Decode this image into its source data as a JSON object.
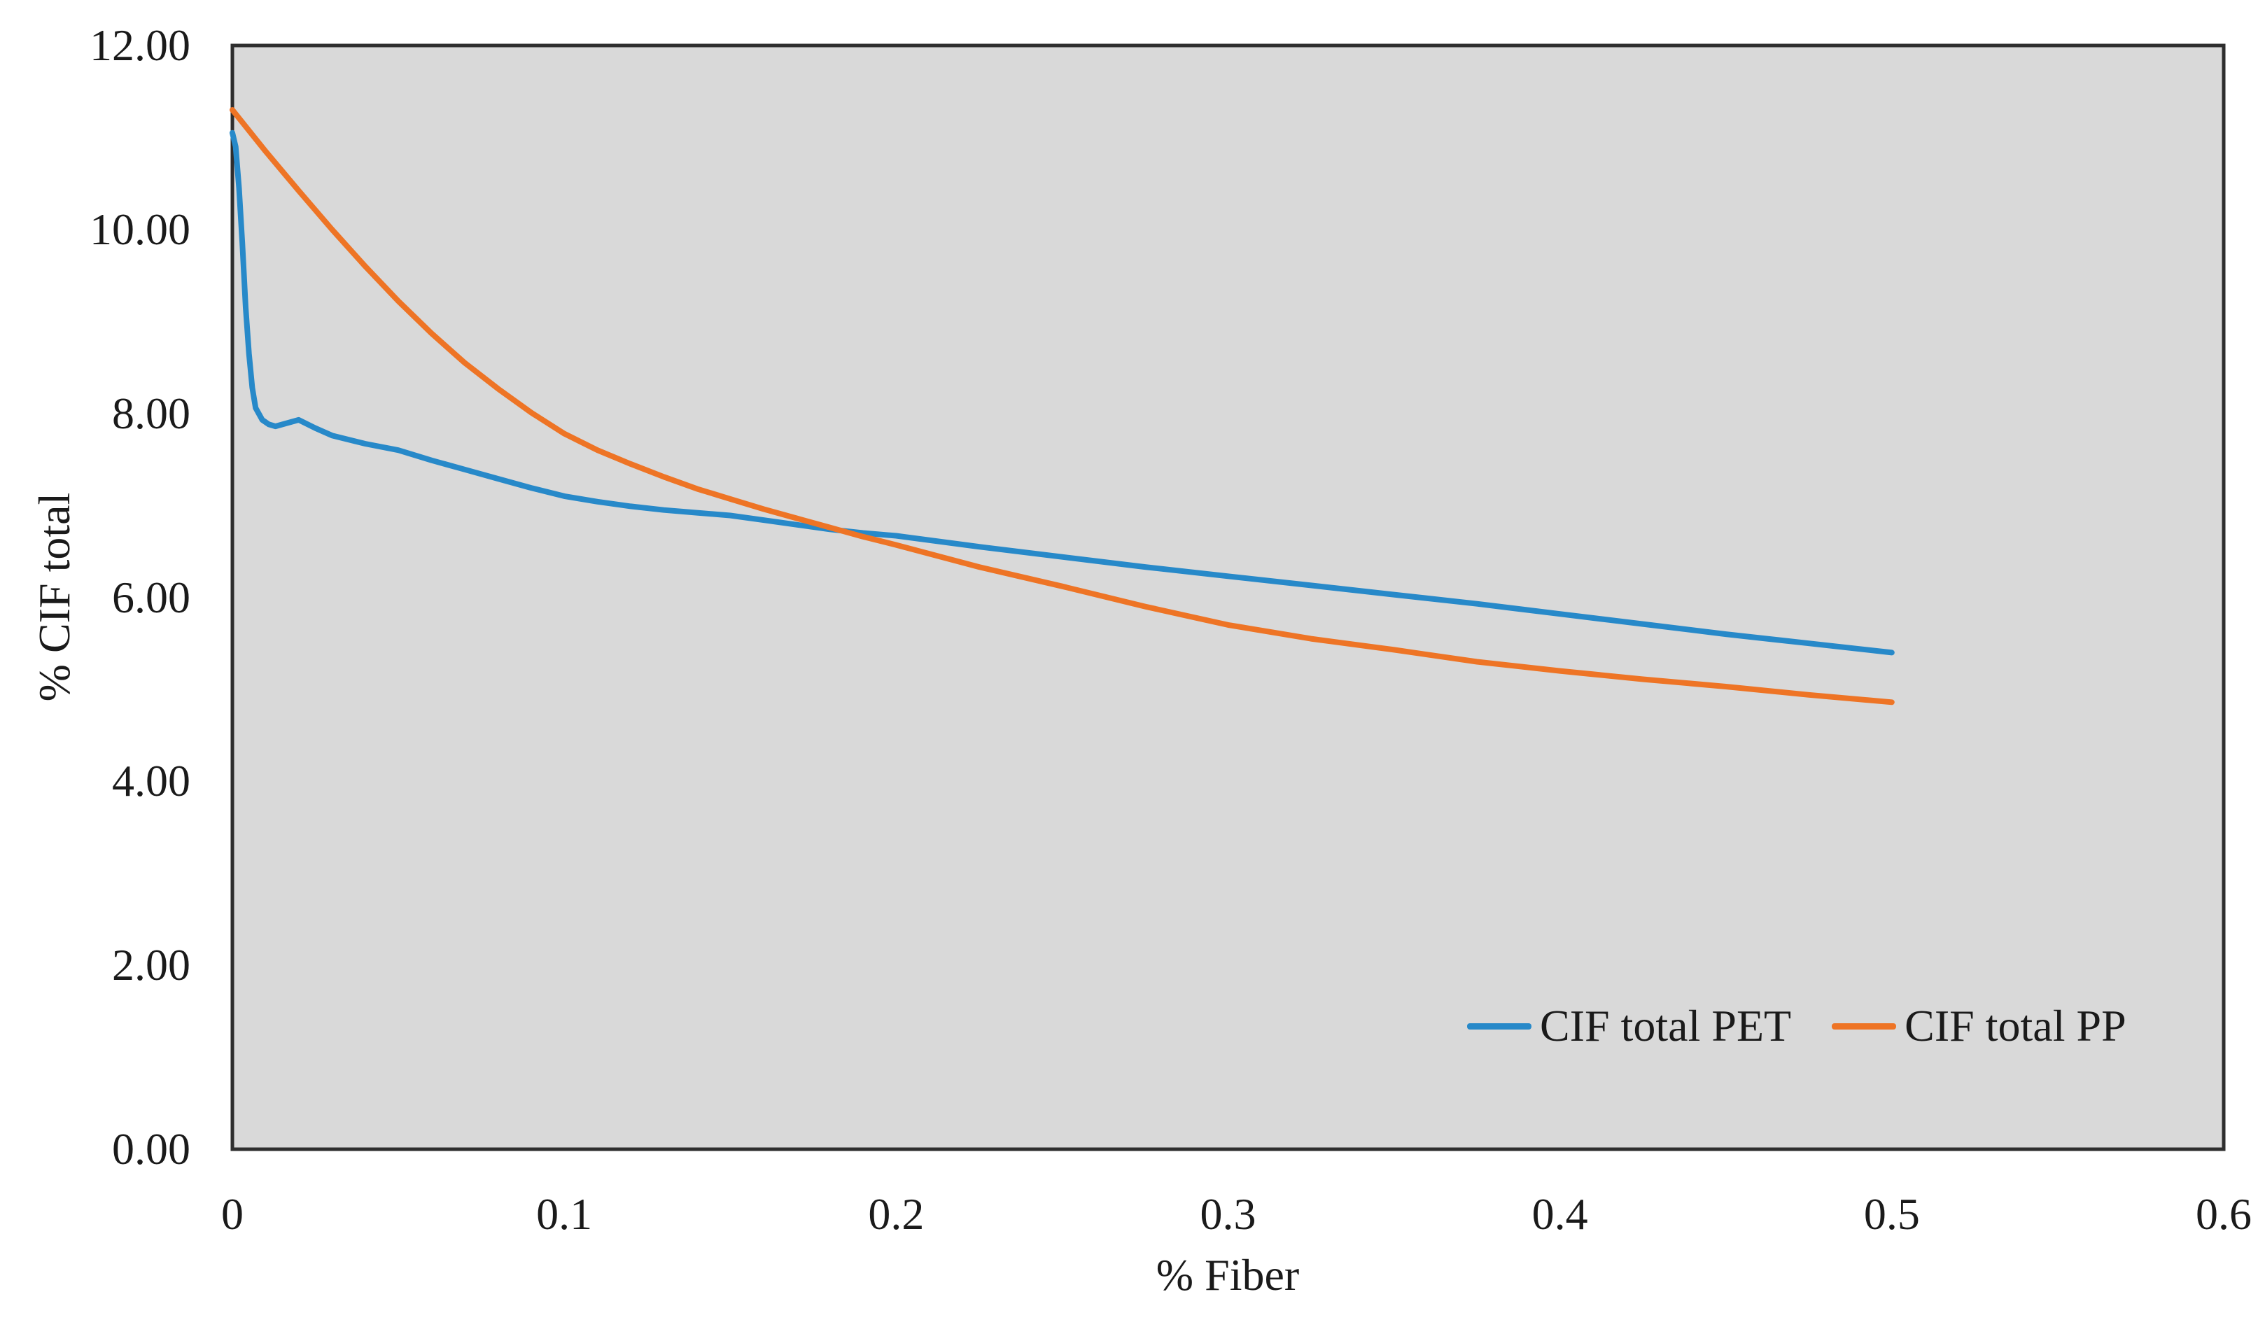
{
  "chart_data": {
    "type": "line",
    "title": "",
    "xlabel": "% Fiber",
    "ylabel": "% CIF total",
    "xlim": [
      0,
      0.6
    ],
    "ylim": [
      0,
      12
    ],
    "grid": false,
    "plot_bg_color": "#D9D9D9",
    "plot_border_color": "#2E2E2E",
    "legend_position": "inside-bottom-right",
    "x_ticks": [
      {
        "value": 0,
        "label": "0"
      },
      {
        "value": 0.1,
        "label": "0.1"
      },
      {
        "value": 0.2,
        "label": "0.2"
      },
      {
        "value": 0.3,
        "label": "0.3"
      },
      {
        "value": 0.4,
        "label": "0.4"
      },
      {
        "value": 0.5,
        "label": "0.5"
      },
      {
        "value": 0.6,
        "label": "0.6"
      }
    ],
    "y_ticks": [
      {
        "value": 0,
        "label": "0.00"
      },
      {
        "value": 2,
        "label": "2.00"
      },
      {
        "value": 4,
        "label": "4.00"
      },
      {
        "value": 6,
        "label": "6.00"
      },
      {
        "value": 8,
        "label": "8.00"
      },
      {
        "value": 10,
        "label": "10.00"
      },
      {
        "value": 12,
        "label": "12.00"
      }
    ],
    "series": [
      {
        "name": "CIF total PET",
        "color": "#2789C9",
        "points": [
          [
            0,
            11.05
          ],
          [
            0.001,
            10.9
          ],
          [
            0.002,
            10.45
          ],
          [
            0.003,
            9.85
          ],
          [
            0.004,
            9.15
          ],
          [
            0.005,
            8.65
          ],
          [
            0.006,
            8.28
          ],
          [
            0.007,
            8.06
          ],
          [
            0.009,
            7.93
          ],
          [
            0.011,
            7.88
          ],
          [
            0.013,
            7.86
          ],
          [
            0.016,
            7.89
          ],
          [
            0.02,
            7.93
          ],
          [
            0.025,
            7.84
          ],
          [
            0.03,
            7.76
          ],
          [
            0.04,
            7.67
          ],
          [
            0.05,
            7.6
          ],
          [
            0.06,
            7.49
          ],
          [
            0.07,
            7.39
          ],
          [
            0.08,
            7.29
          ],
          [
            0.09,
            7.19
          ],
          [
            0.1,
            7.1
          ],
          [
            0.11,
            7.04
          ],
          [
            0.12,
            6.99
          ],
          [
            0.13,
            6.95
          ],
          [
            0.14,
            6.92
          ],
          [
            0.15,
            6.89
          ],
          [
            0.16,
            6.84
          ],
          [
            0.17,
            6.79
          ],
          [
            0.18,
            6.74
          ],
          [
            0.19,
            6.7
          ],
          [
            0.2,
            6.67
          ],
          [
            0.225,
            6.55
          ],
          [
            0.25,
            6.44
          ],
          [
            0.275,
            6.33
          ],
          [
            0.3,
            6.23
          ],
          [
            0.325,
            6.13
          ],
          [
            0.35,
            6.03
          ],
          [
            0.375,
            5.93
          ],
          [
            0.4,
            5.82
          ],
          [
            0.425,
            5.71
          ],
          [
            0.45,
            5.6
          ],
          [
            0.475,
            5.5
          ],
          [
            0.5,
            5.4
          ]
        ]
      },
      {
        "name": "CIF total PP",
        "color": "#EE7425",
        "points": [
          [
            0,
            11.3
          ],
          [
            0.01,
            10.85
          ],
          [
            0.02,
            10.42
          ],
          [
            0.03,
            10.0
          ],
          [
            0.04,
            9.6
          ],
          [
            0.05,
            9.22
          ],
          [
            0.06,
            8.87
          ],
          [
            0.07,
            8.55
          ],
          [
            0.08,
            8.27
          ],
          [
            0.09,
            8.01
          ],
          [
            0.1,
            7.78
          ],
          [
            0.11,
            7.6
          ],
          [
            0.12,
            7.45
          ],
          [
            0.13,
            7.31
          ],
          [
            0.14,
            7.18
          ],
          [
            0.15,
            7.07
          ],
          [
            0.16,
            6.96
          ],
          [
            0.17,
            6.86
          ],
          [
            0.18,
            6.76
          ],
          [
            0.19,
            6.66
          ],
          [
            0.2,
            6.57
          ],
          [
            0.225,
            6.33
          ],
          [
            0.25,
            6.12
          ],
          [
            0.275,
            5.9
          ],
          [
            0.3,
            5.7
          ],
          [
            0.325,
            5.55
          ],
          [
            0.35,
            5.43
          ],
          [
            0.375,
            5.3
          ],
          [
            0.4,
            5.2
          ],
          [
            0.425,
            5.11
          ],
          [
            0.45,
            5.03
          ],
          [
            0.475,
            4.94
          ],
          [
            0.5,
            4.86
          ]
        ]
      }
    ]
  }
}
